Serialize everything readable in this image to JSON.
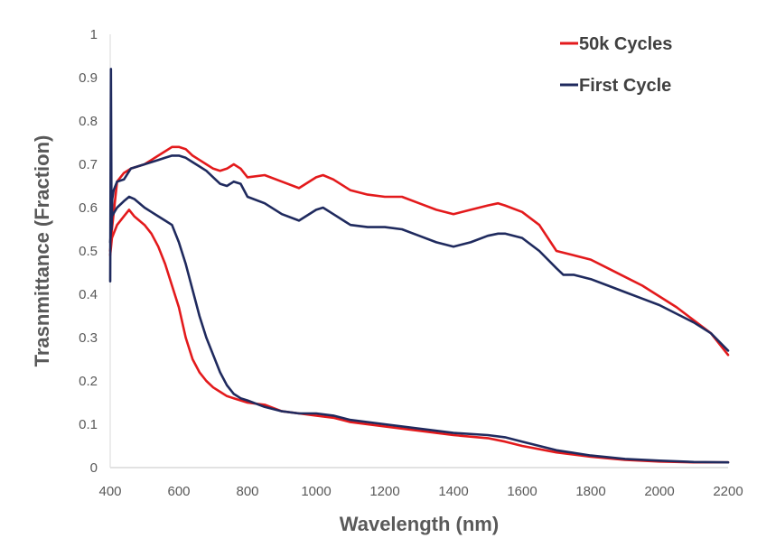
{
  "chart_data": {
    "type": "line",
    "title": "",
    "xlabel": "Wavelength (nm)",
    "ylabel": "Trasnmittance (Fraction)",
    "xlim": [
      400,
      2200
    ],
    "ylim": [
      0,
      1
    ],
    "xticks": [
      "400",
      "600",
      "800",
      "1000",
      "1200",
      "1400",
      "1600",
      "1800",
      "2000",
      "2200"
    ],
    "yticks": [
      "0",
      "0.1",
      "0.2",
      "0.3",
      "0.4",
      "0.5",
      "0.6",
      "0.7",
      "0.8",
      "0.9",
      "1"
    ],
    "grid": false,
    "legend": "top-right",
    "legend_entries": [
      "50k Cycles",
      "First Cycle"
    ],
    "colors": {
      "50k Cycles": "#e31a1c",
      "First Cycle": "#1f2a5e"
    },
    "series": [
      {
        "name": "50k Cycles",
        "color": "#e31a1c",
        "state": "bleached",
        "x": [
          400,
          405,
          420,
          440,
          460,
          480,
          500,
          520,
          540,
          560,
          580,
          600,
          620,
          640,
          660,
          680,
          700,
          720,
          740,
          760,
          780,
          800,
          850,
          900,
          950,
          1000,
          1020,
          1050,
          1100,
          1150,
          1200,
          1250,
          1300,
          1350,
          1400,
          1450,
          1500,
          1530,
          1550,
          1600,
          1650,
          1700,
          1750,
          1800,
          1850,
          1900,
          1950,
          2000,
          2050,
          2100,
          2150,
          2200
        ],
        "y": [
          0.5,
          0.55,
          0.66,
          0.68,
          0.69,
          0.695,
          0.7,
          0.71,
          0.72,
          0.73,
          0.74,
          0.74,
          0.735,
          0.72,
          0.71,
          0.7,
          0.69,
          0.685,
          0.69,
          0.7,
          0.69,
          0.67,
          0.675,
          0.66,
          0.645,
          0.67,
          0.675,
          0.665,
          0.64,
          0.63,
          0.625,
          0.625,
          0.61,
          0.595,
          0.585,
          0.595,
          0.605,
          0.61,
          0.605,
          0.59,
          0.56,
          0.5,
          0.49,
          0.48,
          0.46,
          0.44,
          0.42,
          0.395,
          0.37,
          0.34,
          0.31,
          0.26
        ]
      },
      {
        "name": "50k Cycles",
        "color": "#e31a1c",
        "state": "colored",
        "x": [
          400,
          405,
          420,
          440,
          455,
          470,
          500,
          520,
          540,
          560,
          580,
          600,
          620,
          640,
          660,
          680,
          700,
          720,
          740,
          760,
          780,
          800,
          850,
          900,
          950,
          1000,
          1050,
          1100,
          1200,
          1300,
          1400,
          1500,
          1550,
          1600,
          1700,
          1800,
          1900,
          2000,
          2100,
          2200
        ],
        "y": [
          0.49,
          0.53,
          0.56,
          0.58,
          0.595,
          0.58,
          0.56,
          0.54,
          0.51,
          0.47,
          0.42,
          0.37,
          0.3,
          0.25,
          0.22,
          0.2,
          0.185,
          0.175,
          0.165,
          0.16,
          0.155,
          0.15,
          0.145,
          0.13,
          0.125,
          0.12,
          0.115,
          0.105,
          0.095,
          0.085,
          0.075,
          0.068,
          0.06,
          0.05,
          0.035,
          0.025,
          0.018,
          0.014,
          0.012,
          0.012
        ]
      },
      {
        "name": "First Cycle",
        "color": "#1f2a5e",
        "state": "bleached",
        "x": [
          400,
          402,
          404,
          406,
          410,
          420,
          440,
          460,
          480,
          500,
          520,
          540,
          560,
          580,
          600,
          620,
          640,
          660,
          680,
          700,
          720,
          740,
          760,
          780,
          800,
          850,
          900,
          950,
          1000,
          1020,
          1050,
          1100,
          1150,
          1200,
          1250,
          1300,
          1350,
          1400,
          1450,
          1500,
          1530,
          1550,
          1600,
          1650,
          1700,
          1720,
          1750,
          1800,
          1850,
          1900,
          1950,
          2000,
          2050,
          2100,
          2150,
          2200
        ],
        "y": [
          0.43,
          0.92,
          0.55,
          0.62,
          0.64,
          0.66,
          0.665,
          0.69,
          0.695,
          0.7,
          0.705,
          0.71,
          0.715,
          0.72,
          0.72,
          0.715,
          0.705,
          0.695,
          0.685,
          0.67,
          0.655,
          0.65,
          0.66,
          0.655,
          0.625,
          0.61,
          0.585,
          0.57,
          0.595,
          0.6,
          0.585,
          0.56,
          0.555,
          0.555,
          0.55,
          0.535,
          0.52,
          0.51,
          0.52,
          0.535,
          0.54,
          0.54,
          0.53,
          0.5,
          0.46,
          0.445,
          0.445,
          0.435,
          0.42,
          0.405,
          0.39,
          0.375,
          0.355,
          0.335,
          0.31,
          0.27
        ]
      },
      {
        "name": "First Cycle",
        "color": "#1f2a5e",
        "state": "colored",
        "x": [
          400,
          405,
          420,
          440,
          455,
          470,
          500,
          520,
          540,
          560,
          580,
          600,
          620,
          640,
          660,
          680,
          700,
          720,
          740,
          760,
          780,
          800,
          850,
          900,
          950,
          1000,
          1050,
          1100,
          1200,
          1300,
          1400,
          1500,
          1550,
          1600,
          1700,
          1800,
          1900,
          2000,
          2100,
          2200
        ],
        "y": [
          0.52,
          0.58,
          0.6,
          0.615,
          0.625,
          0.62,
          0.6,
          0.59,
          0.58,
          0.57,
          0.56,
          0.52,
          0.47,
          0.41,
          0.35,
          0.3,
          0.26,
          0.22,
          0.19,
          0.17,
          0.16,
          0.155,
          0.14,
          0.13,
          0.125,
          0.125,
          0.12,
          0.11,
          0.1,
          0.09,
          0.08,
          0.075,
          0.07,
          0.06,
          0.04,
          0.028,
          0.02,
          0.016,
          0.013,
          0.012
        ]
      }
    ]
  }
}
